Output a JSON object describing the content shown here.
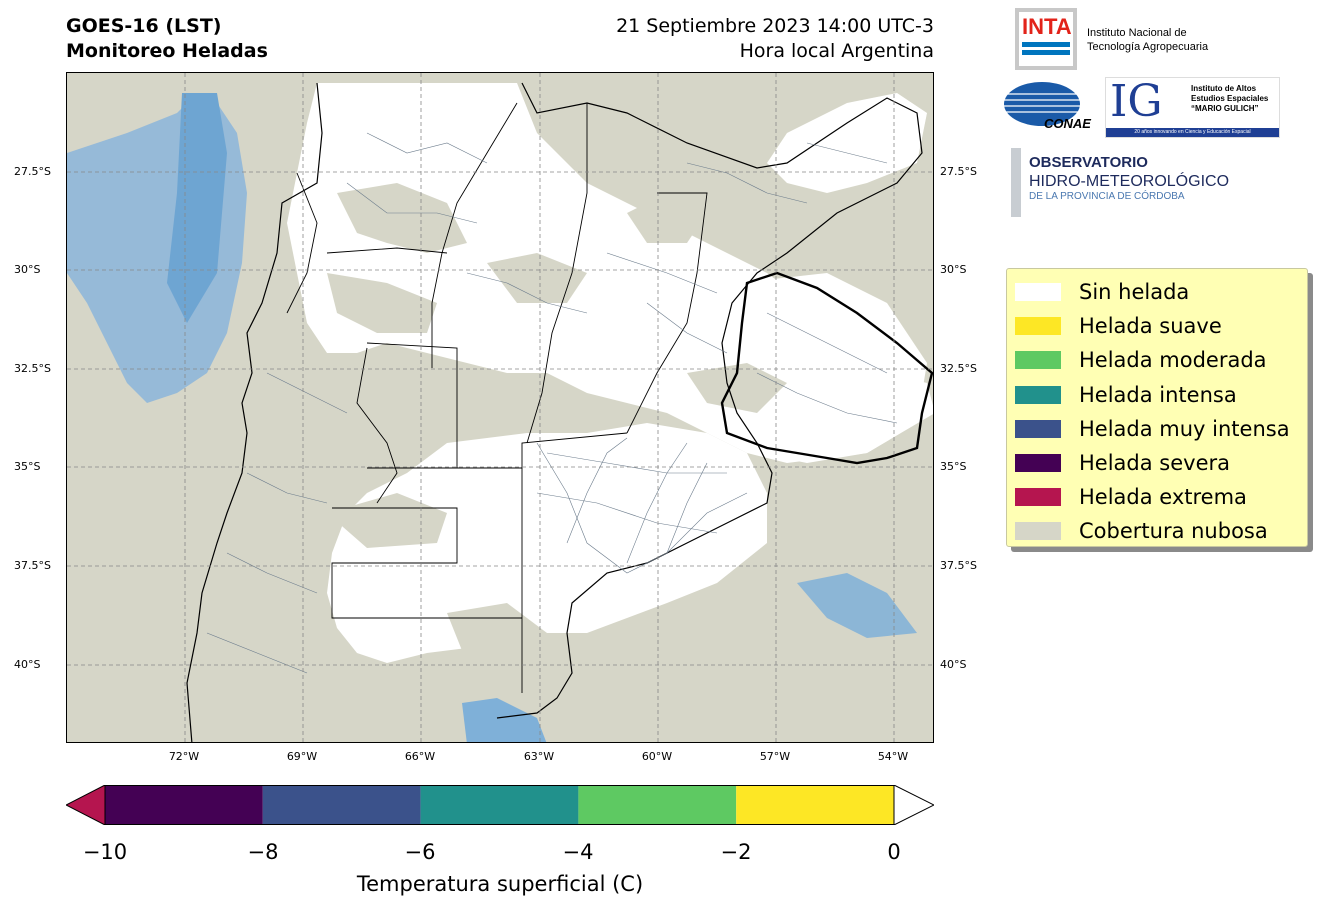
{
  "header": {
    "left_line1": "GOES-16 (LST)",
    "left_line2": "Monitoreo Heladas",
    "right_line1": "21 Septiembre 2023 14:00 UTC-3",
    "right_line2": "Hora local Argentina"
  },
  "map": {
    "lat_ticks": [
      "27.5°S",
      "30°S",
      "32.5°S",
      "35°S",
      "37.5°S",
      "40°S"
    ],
    "lon_ticks": [
      "72°W",
      "69°W",
      "66°W",
      "63°W",
      "60°W",
      "57°W",
      "54°W"
    ],
    "grid": true,
    "colors": {
      "cloud": "#d6d6c8",
      "no_frost": "#ffffff",
      "sea_cloudfree": "#7fb0d8",
      "borders": "#000000",
      "departments": "#6d7d8d"
    }
  },
  "logos": {
    "inta_mark": "INTA",
    "inta_line1": "Instituto Nacional de",
    "inta_line2": "Tecnología Agropecuaria",
    "conae": "CONAE",
    "ig_mark": "IG",
    "ig_line1": "Instituto de Altos",
    "ig_line2": "Estudios Espaciales",
    "ig_line3": "“MARIO GULICH”",
    "ig_tagline": "20 años innovando en Ciencia y Educación Espacial",
    "obs_line1": "OBSERVATORIO",
    "obs_line2": "HIDRO-METEOROLÓGICO",
    "obs_line3": "DE LA PROVINCIA DE CÓRDOBA"
  },
  "legend": [
    {
      "label": "Sin helada",
      "color": "#ffffff"
    },
    {
      "label": "Helada suave",
      "color": "#fde725"
    },
    {
      "label": "Helada moderada",
      "color": "#5ec962"
    },
    {
      "label": "Helada intensa",
      "color": "#21918c"
    },
    {
      "label": "Helada muy intensa",
      "color": "#3b528b"
    },
    {
      "label": "Helada severa",
      "color": "#440154"
    },
    {
      "label": "Helada extrema",
      "color": "#b5154f"
    },
    {
      "label": "Cobertura nubosa",
      "color": "#d6d6c8"
    }
  ],
  "colorbar": {
    "ticks": [
      "−10",
      "−8",
      "−6",
      "−4",
      "−2",
      "0"
    ],
    "label": "Temperatura superficial (C)",
    "segments": [
      "#440154",
      "#3b528b",
      "#21918c",
      "#5ec962",
      "#fde725"
    ],
    "under_color": "#b5154f",
    "over_color": "#ffffff"
  }
}
